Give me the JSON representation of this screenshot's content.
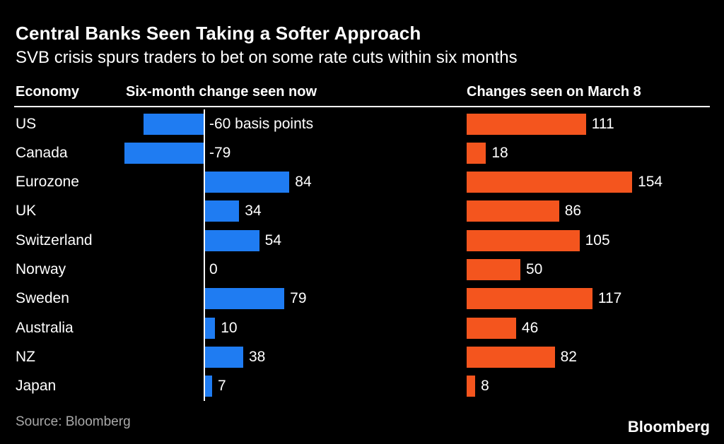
{
  "title": "Central Banks Seen Taking a Softer Approach",
  "subtitle": "SVB crisis spurs traders to bet on some rate cuts within six months",
  "columns": {
    "economy": "Economy",
    "now": "Six-month change seen now",
    "march8": "Changes seen on March 8"
  },
  "source": "Source: Bloomberg",
  "brand": "Bloomberg",
  "colors": {
    "background": "#000000",
    "text": "#ffffff",
    "source_text": "#a9a9a9",
    "axis": "#ffffff",
    "now_bar": "#1f7cf2",
    "march8_bar": "#f4551e"
  },
  "chart_data": {
    "type": "bar",
    "orientation": "horizontal",
    "unit": "basis points",
    "legend_position": "column-headers",
    "grid": false,
    "categories": [
      "US",
      "Canada",
      "Eurozone",
      "UK",
      "Switzerland",
      "Norway",
      "Sweden",
      "Australia",
      "NZ",
      "Japan"
    ],
    "series": [
      {
        "name": "Six-month change seen now",
        "color": "#1f7cf2",
        "values": [
          -60,
          -79,
          84,
          34,
          54,
          0,
          79,
          10,
          38,
          7
        ],
        "labels": [
          "-60 basis points",
          "-79",
          "84",
          "34",
          "54",
          "0",
          "79",
          "10",
          "38",
          "7"
        ],
        "xlim": [
          -100,
          100
        ]
      },
      {
        "name": "Changes seen on March 8",
        "color": "#f4551e",
        "values": [
          111,
          18,
          154,
          86,
          105,
          50,
          117,
          46,
          82,
          8
        ],
        "labels": [
          "111",
          "18",
          "154",
          "86",
          "105",
          "50",
          "117",
          "46",
          "82",
          "8"
        ],
        "xlim": [
          0,
          170
        ]
      }
    ]
  }
}
